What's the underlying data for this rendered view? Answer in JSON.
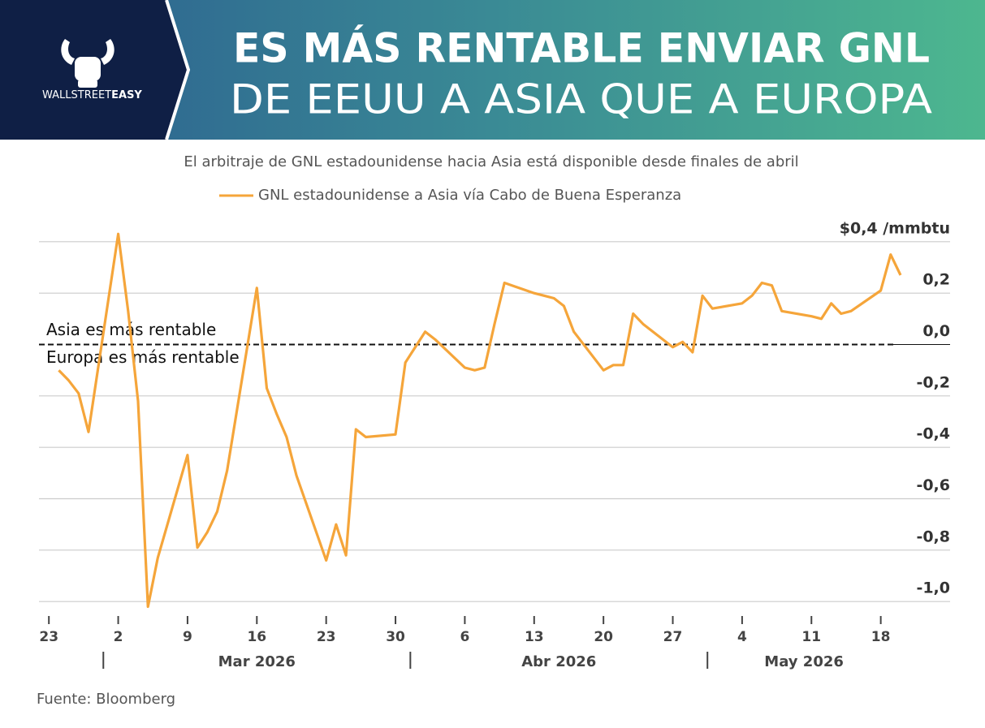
{
  "brand": {
    "name_light": "WALLSTREET",
    "name_bold": "EASY"
  },
  "chart_data": {
    "type": "line",
    "title": [
      "ES MÁS RENTABLE ENVIAR GNL",
      "DE EEUU A ASIA QUE A EUROPA"
    ],
    "subtitle": "El arbitraje de GNL estadounidense hacia Asia está disponible desde finales de abril",
    "annotations": [
      "Asia es más rentable",
      "Europa es más rentable"
    ],
    "source": "Fuente: Bloomberg",
    "x": [
      "2026-02-24",
      "2026-02-25",
      "2026-02-26",
      "2026-02-27",
      "2026-03-02",
      "2026-03-03",
      "2026-03-04",
      "2026-03-05",
      "2026-03-06",
      "2026-03-09",
      "2026-03-10",
      "2026-03-11",
      "2026-03-12",
      "2026-03-13",
      "2026-03-16",
      "2026-03-17",
      "2026-03-18",
      "2026-03-19",
      "2026-03-20",
      "2026-03-23",
      "2026-03-24",
      "2026-03-25",
      "2026-03-26",
      "2026-03-27",
      "2026-03-30",
      "2026-03-31",
      "2026-04-01",
      "2026-04-02",
      "2026-04-03",
      "2026-04-06",
      "2026-04-07",
      "2026-04-08",
      "2026-04-09",
      "2026-04-10",
      "2026-04-13",
      "2026-04-14",
      "2026-04-15",
      "2026-04-16",
      "2026-04-17",
      "2026-04-20",
      "2026-04-21",
      "2026-04-22",
      "2026-04-23",
      "2026-04-24",
      "2026-04-27",
      "2026-04-28",
      "2026-04-29",
      "2026-04-30",
      "2026-05-01",
      "2026-05-04",
      "2026-05-05",
      "2026-05-06",
      "2026-05-07",
      "2026-05-08",
      "2026-05-11",
      "2026-05-12",
      "2026-05-13",
      "2026-05-14",
      "2026-05-15",
      "2026-05-18",
      "2026-05-19",
      "2026-05-20"
    ],
    "series": [
      {
        "name": "GNL estadounidense a Asia vía Cabo de Buena Esperanza",
        "color": "#f5a53a",
        "values": [
          -0.1,
          -0.14,
          -0.19,
          -0.34,
          0.43,
          0.13,
          -0.22,
          -1.02,
          -0.83,
          -0.43,
          -0.79,
          -0.73,
          -0.65,
          -0.49,
          0.22,
          -0.17,
          -0.27,
          -0.36,
          -0.51,
          -0.84,
          -0.7,
          -0.82,
          -0.33,
          -0.36,
          -0.35,
          -0.07,
          -0.01,
          0.05,
          0.02,
          -0.09,
          -0.1,
          -0.09,
          0.08,
          0.24,
          0.2,
          0.19,
          0.18,
          0.15,
          0.05,
          -0.1,
          -0.08,
          -0.08,
          0.12,
          0.08,
          -0.01,
          0.01,
          -0.03,
          0.19,
          0.14,
          0.16,
          0.19,
          0.24,
          0.23,
          0.13,
          0.11,
          0.1,
          0.16,
          0.12,
          0.13,
          0.21,
          0.35,
          0.27
        ]
      }
    ],
    "xlim": [
      "2026-02-22",
      "2026-05-25"
    ],
    "xticks": [
      {
        "value": "2026-02-23",
        "label": "23"
      },
      {
        "value": "2026-03-02",
        "label": "2"
      },
      {
        "value": "2026-03-09",
        "label": "9"
      },
      {
        "value": "2026-03-16",
        "label": "16"
      },
      {
        "value": "2026-03-23",
        "label": "23"
      },
      {
        "value": "2026-03-30",
        "label": "30"
      },
      {
        "value": "2026-04-06",
        "label": "6"
      },
      {
        "value": "2026-04-13",
        "label": "13"
      },
      {
        "value": "2026-04-20",
        "label": "20"
      },
      {
        "value": "2026-04-27",
        "label": "27"
      },
      {
        "value": "2026-05-04",
        "label": "4"
      },
      {
        "value": "2026-05-11",
        "label": "11"
      },
      {
        "value": "2026-05-18",
        "label": "18"
      }
    ],
    "months": [
      {
        "value": "2026-03-01",
        "label": "Mar 2026"
      },
      {
        "value": "2026-04-01",
        "label": "Abr 2026"
      },
      {
        "value": "2026-05-01",
        "label": "May 2026"
      }
    ],
    "ylim": [
      -1.05,
      0.45
    ],
    "yticks": [
      {
        "value": 0.4,
        "label": "$0,4 /mmbtu"
      },
      {
        "value": 0.2,
        "label": "0,2"
      },
      {
        "value": 0,
        "label": "0,0"
      },
      {
        "value": -0.2,
        "label": "-0,2"
      },
      {
        "value": -0.4,
        "label": "-0,4"
      },
      {
        "value": -0.6,
        "label": "-0,6"
      },
      {
        "value": -0.8,
        "label": "-0,8"
      },
      {
        "value": -1.0,
        "label": "-1,0"
      }
    ],
    "grid": true
  }
}
